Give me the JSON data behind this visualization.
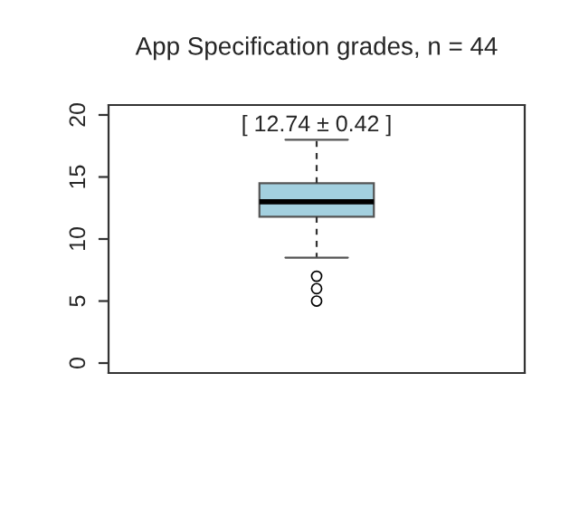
{
  "chart_data": {
    "type": "box",
    "title": "App Specification grades, n = 44",
    "categories": [
      null
    ],
    "boxes": [
      {
        "low": 8.5,
        "q1": 11.8,
        "median": 13,
        "q3": 14.5,
        "high": 18,
        "outliers": [
          7,
          6,
          5
        ]
      }
    ],
    "color": "#a3d0df",
    "ylim": [
      -0.8,
      20.8
    ],
    "yticks": [
      0,
      5,
      10,
      15,
      20
    ],
    "annotations": [
      "[ 12.74 ± 0.42 ]"
    ],
    "grid": false
  }
}
